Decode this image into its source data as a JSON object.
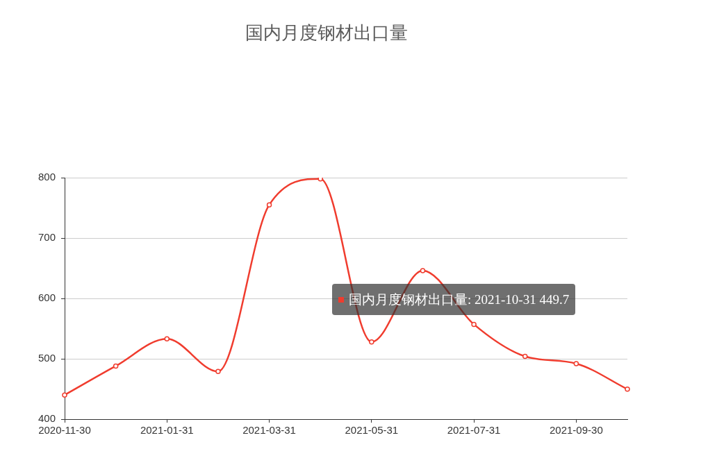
{
  "chart_data": {
    "type": "line",
    "title": "国内月度钢材出口量",
    "categories": [
      "2020-11-30",
      null,
      "2021-01-31",
      null,
      "2021-03-31",
      null,
      "2021-05-31",
      null,
      "2021-07-31",
      null,
      "2021-09-30",
      null
    ],
    "series": [
      {
        "color": "#f03c2e",
        "values": [
          440,
          488,
          533,
          479,
          755,
          798,
          528,
          646,
          557,
          504,
          492,
          449.7
        ]
      }
    ],
    "ylim": [
      400,
      800
    ],
    "yticks": [
      400,
      500,
      600,
      700,
      800
    ],
    "grid": "y",
    "marker": "circle",
    "line_style": "solid",
    "annotations": [
      "国内月度钢材出口量: 2021-10-31 449.7"
    ]
  }
}
